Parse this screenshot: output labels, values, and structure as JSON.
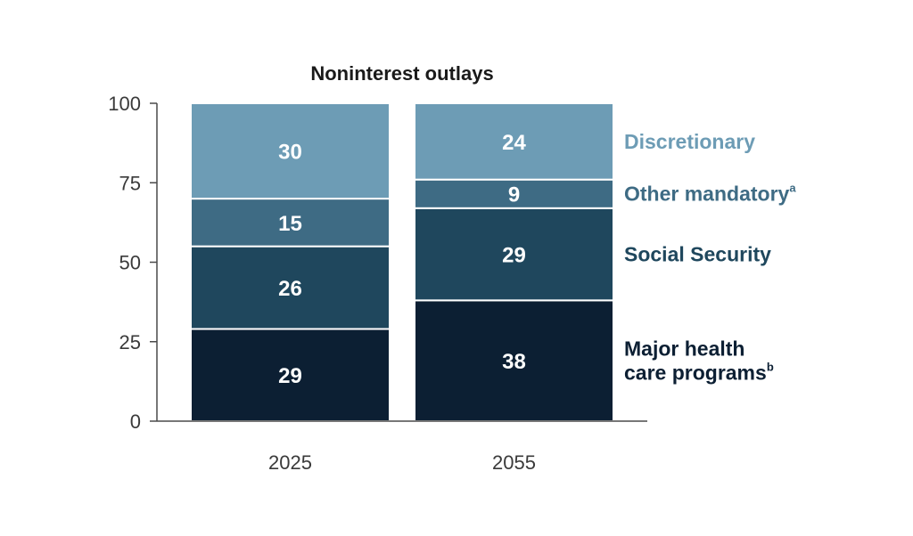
{
  "chart_data": {
    "type": "bar",
    "stacked": true,
    "title": "Noninterest outlays",
    "categories": [
      "2025",
      "2055"
    ],
    "ylim": [
      0,
      100
    ],
    "yticks": [
      0,
      25,
      50,
      75,
      100
    ],
    "series": [
      {
        "name": "Major health care programs",
        "name_lines": [
          "Major health",
          "care programs"
        ],
        "superscript": "b",
        "color": "#0c1f33",
        "values": [
          29,
          38
        ]
      },
      {
        "name": "Social Security",
        "name_lines": [
          "Social Security"
        ],
        "superscript": "",
        "color": "#1f475d",
        "values": [
          26,
          29
        ]
      },
      {
        "name": "Other mandatory",
        "name_lines": [
          "Other mandatory"
        ],
        "superscript": "a",
        "color": "#3e6b84",
        "values": [
          15,
          9
        ]
      },
      {
        "name": "Discretionary",
        "name_lines": [
          "Discretionary"
        ],
        "superscript": "",
        "color": "#6d9cb5",
        "values": [
          30,
          24
        ]
      }
    ],
    "data_labels": [
      [
        "29",
        "38"
      ],
      [
        "26",
        "29"
      ],
      [
        "15",
        "9"
      ],
      [
        "30",
        "24"
      ]
    ],
    "legend_placement": "right"
  }
}
